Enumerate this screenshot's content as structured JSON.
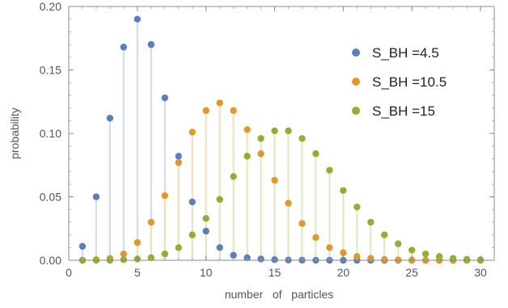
{
  "chart_data": {
    "type": "scatter",
    "xlabel": "number   of   particles",
    "ylabel": "probability",
    "xlim": [
      0,
      31
    ],
    "ylim": [
      0,
      0.2
    ],
    "xticks": [
      0,
      5,
      10,
      15,
      20,
      25,
      30
    ],
    "xtick_labels": [
      "0",
      "5",
      "10",
      "15",
      "20",
      "25",
      "30"
    ],
    "yticks": [
      0,
      0.05,
      0.1,
      0.15,
      0.2
    ],
    "ytick_labels": [
      "0.00",
      "0.05",
      "0.10",
      "0.15",
      "0.20"
    ],
    "grid": false,
    "legend_position": "top-right",
    "x": [
      1,
      2,
      3,
      4,
      5,
      6,
      7,
      8,
      9,
      10,
      11,
      12,
      13,
      14,
      15,
      16,
      17,
      18,
      19,
      20,
      21,
      22,
      23,
      24,
      25,
      26,
      27,
      28,
      29,
      30
    ],
    "series": [
      {
        "name": "S_BH  =4.5",
        "color": "#5b7fbb",
        "stem_color": "#d3dcec",
        "values": [
          0.011,
          0.05,
          0.112,
          0.168,
          0.19,
          0.17,
          0.128,
          0.082,
          0.046,
          0.023,
          0.01,
          0.004,
          0.002,
          0.001,
          0.0005,
          0.0002,
          0.0001,
          0,
          0,
          0,
          0,
          0,
          0,
          0,
          0,
          0,
          0,
          0,
          0,
          0
        ]
      },
      {
        "name": "S_BH  =10.5",
        "color": "#e0982a",
        "stem_color": "#f6dfbd",
        "values": [
          0,
          0.0005,
          0.0015,
          0.005,
          0.014,
          0.03,
          0.051,
          0.077,
          0.101,
          0.118,
          0.124,
          0.118,
          0.103,
          0.084,
          0.063,
          0.045,
          0.029,
          0.018,
          0.01,
          0.006,
          0.003,
          0.0015,
          0.0007,
          0.0003,
          0.0001,
          0,
          0,
          0,
          0,
          0
        ]
      },
      {
        "name": "S_BH  =15",
        "color": "#8fb032",
        "stem_color": "#e0eac5",
        "values": [
          0,
          0,
          0,
          0.0005,
          0.001,
          0.002,
          0.005,
          0.01,
          0.02,
          0.033,
          0.048,
          0.066,
          0.082,
          0.096,
          0.102,
          0.102,
          0.096,
          0.084,
          0.071,
          0.055,
          0.042,
          0.03,
          0.02,
          0.013,
          0.008,
          0.005,
          0.003,
          0.0015,
          0.0008,
          0.0004
        ]
      }
    ]
  }
}
